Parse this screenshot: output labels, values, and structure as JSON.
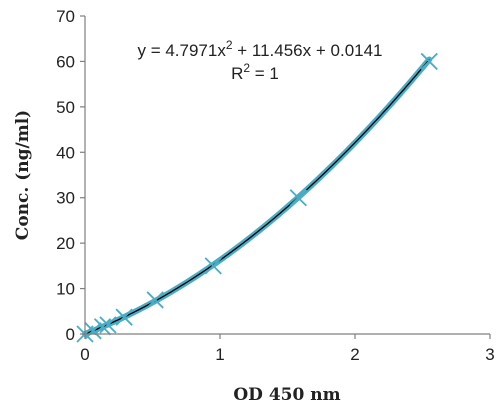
{
  "chart_data": {
    "type": "scatter",
    "xlabel": "OD 450 nm",
    "ylabel": "Conc. (ng/ml)",
    "xlim": [
      0,
      3
    ],
    "ylim": [
      0,
      70
    ],
    "x_ticks": [
      0,
      1,
      2,
      3
    ],
    "y_ticks": [
      0,
      10,
      20,
      30,
      40,
      50,
      60,
      70
    ],
    "grid": false,
    "series": [
      {
        "x": [
          0.0,
          0.06,
          0.13,
          0.17,
          0.29,
          0.52,
          0.95,
          1.58,
          2.55
        ],
        "y": [
          0.0,
          0.7,
          1.6,
          2.0,
          3.7,
          7.5,
          15.0,
          30.0,
          60.0
        ],
        "marker": "asterisk",
        "color": "#4bacc6"
      }
    ],
    "trendline": {
      "type": "polynomial",
      "coefficients": [
        4.7971,
        11.456,
        0.0141
      ],
      "color": "#000000"
    },
    "annotations": {
      "equation_prefix": "y = 4.7971x",
      "equation_exp": "2",
      "equation_suffix": " + 11.456x + 0.0141",
      "r2_prefix": "R",
      "r2_exp": "2",
      "r2_suffix": " = 1"
    }
  }
}
